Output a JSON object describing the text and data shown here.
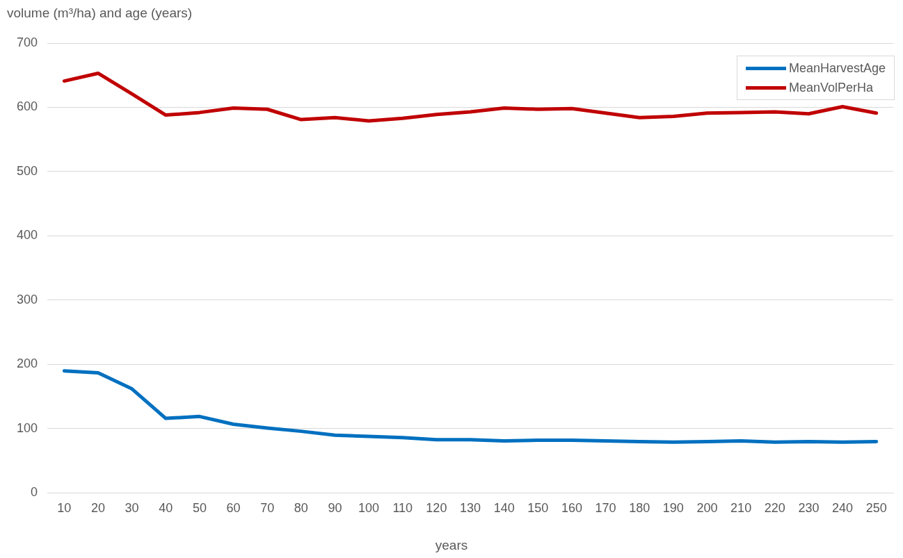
{
  "chart_data": {
    "type": "line",
    "ylabel": "volume (m³/ha) and age (years)",
    "xlabel": "years",
    "categories": [
      "10",
      "20",
      "30",
      "40",
      "50",
      "60",
      "70",
      "80",
      "90",
      "100",
      "110",
      "120",
      "130",
      "140",
      "150",
      "160",
      "170",
      "180",
      "190",
      "200",
      "210",
      "220",
      "230",
      "240",
      "250"
    ],
    "series": [
      {
        "name": "MeanHarvestAge",
        "color": "#0070c0",
        "values": [
          190,
          187,
          162,
          116,
          119,
          107,
          101,
          96,
          90,
          88,
          86,
          83,
          83,
          81,
          82,
          82,
          81,
          80,
          79,
          80,
          81,
          79,
          80,
          79,
          80
        ]
      },
      {
        "name": "MeanVolPerHa",
        "color": "#c00000",
        "values": [
          641,
          653,
          621,
          588,
          592,
          599,
          597,
          581,
          584,
          579,
          583,
          589,
          593,
          599,
          597,
          598,
          591,
          584,
          586,
          591,
          592,
          593,
          590,
          601,
          591
        ]
      }
    ],
    "ylim": [
      0,
      700
    ],
    "yticks": [
      0,
      100,
      200,
      300,
      400,
      500,
      600,
      700
    ],
    "grid": "y",
    "legend": "top right",
    "marker": "none",
    "line_style": "solid"
  }
}
